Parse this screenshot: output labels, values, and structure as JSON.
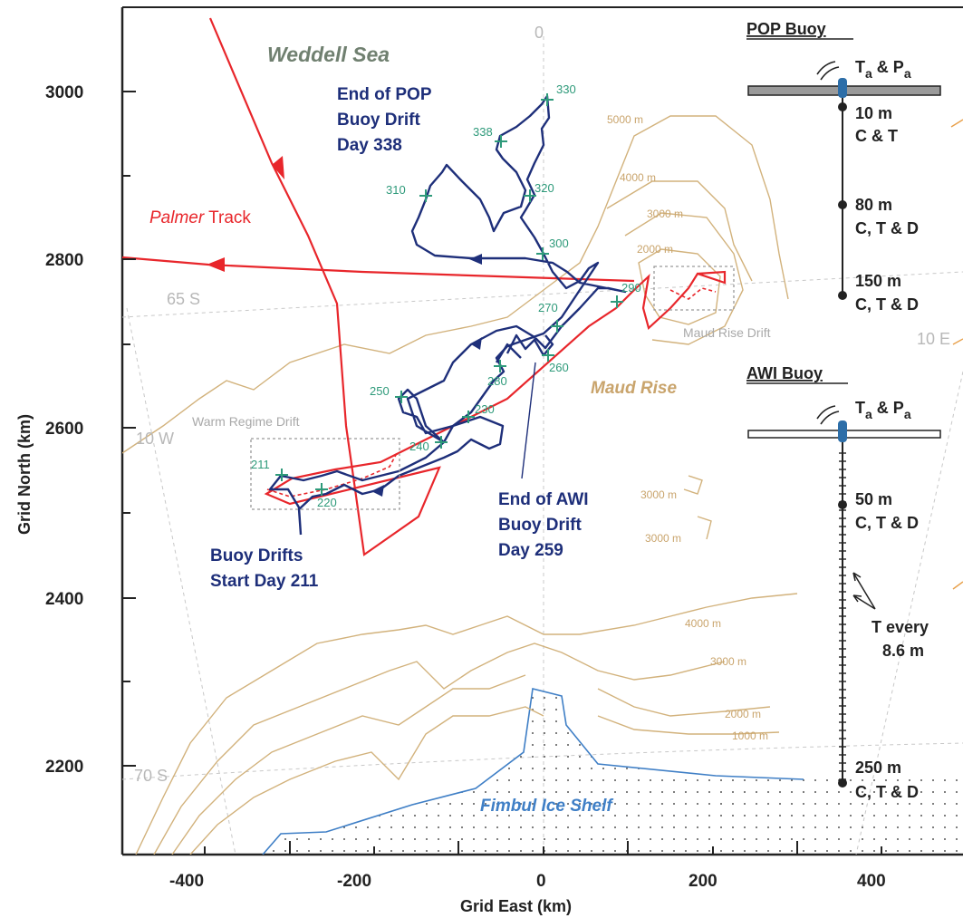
{
  "map": {
    "title_weddell": "Weddell Sea",
    "palmer_track": [
      "Palmer",
      " Track"
    ],
    "maud_rise": "Maud Rise",
    "fimbul": "Fimbul Ice Shelf",
    "warm_regime": "Warm Regime Drift",
    "maud_rise_drift": "Maud Rise Drift",
    "lat_labels": {
      "s65": "65 S",
      "s70": "70 S",
      "w10": "10 W",
      "e10": "10 E",
      "zero": "0"
    },
    "pop_end": [
      "End of POP",
      "Buoy Drift",
      "Day 338"
    ],
    "awi_end": [
      "End of AWI",
      "Buoy Drift",
      "Day 259"
    ],
    "start": [
      "Buoy Drifts",
      "Start Day 211"
    ],
    "contour_labels": {
      "c5000": "5000 m",
      "c4000a": "4000 m",
      "c3000a": "3000 m",
      "c2000a": "2000 m",
      "c3000b": "3000 m",
      "c3000c": "3000 m",
      "c4000b": "4000 m",
      "c3000d": "3000 m",
      "c2000b": "2000 m",
      "c1000": "1000 m"
    },
    "days": {
      "d330": "330",
      "d338": "338",
      "d310": "310",
      "d320": "320",
      "d300": "300",
      "d290": "290",
      "d270": "270",
      "d260": "260",
      "d280": "280",
      "d250": "250",
      "d230": "230",
      "d240": "240",
      "d211": "211",
      "d220": "220"
    }
  },
  "axes": {
    "xlabel": "Grid East (km)",
    "ylabel": "Grid North (km)",
    "xticks": [
      "-400",
      "-200",
      "0",
      "200",
      "400"
    ],
    "yticks": [
      "3000",
      "2800",
      "2600",
      "2400",
      "2200"
    ]
  },
  "pop_buoy": {
    "title": "POP Buoy",
    "surface": "T",
    "sub_a": "a",
    "amp": " & P",
    "sub_b": "a",
    "levels": [
      {
        "depth": "10 m",
        "sensors": "C & T"
      },
      {
        "depth": "80 m",
        "sensors": "C, T & D"
      },
      {
        "depth": "150 m",
        "sensors": "C, T & D"
      }
    ]
  },
  "awi_buoy": {
    "title": "AWI Buoy",
    "surface": "T",
    "sub_a": "a",
    "amp": " & P",
    "sub_b": "a",
    "levels": [
      {
        "depth": "50 m",
        "sensors": "C, T & D"
      },
      {
        "depth": "250 m",
        "sensors": "C, T & D"
      }
    ],
    "every": [
      "T every",
      "8.6 m"
    ]
  },
  "colors": {
    "palmer": "#e8262b",
    "buoy_track": "#1e2f7a",
    "contour": "#d2b27c",
    "ice": "#3f7fc6",
    "day_marker": "#2e9a7a"
  }
}
